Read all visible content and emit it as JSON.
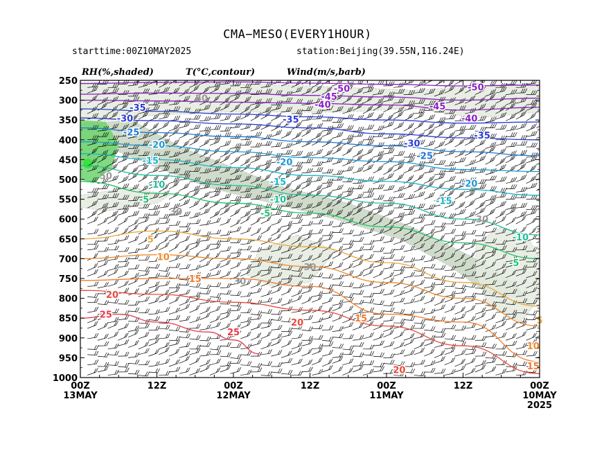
{
  "title": "CMA−MESO(EVERY1HOUR)",
  "subtitle_left": "starttime:00Z10MAY2025",
  "subtitle_right": "station:Beijing(39.55N,116.24E)",
  "legend": {
    "rh": "RH(%,shaded)",
    "temp": "T(°C,contour)",
    "wind": "Wind(m/s,barb)"
  },
  "chart_data": {
    "type": "heatmap",
    "description_kind": "time-height cross section",
    "x_axis": {
      "reversed": true,
      "hours_from_start_range": [
        0,
        72
      ],
      "ticks": [
        {
          "hour": 72,
          "line1": "00Z",
          "line2": "13MAY",
          "line3": ""
        },
        {
          "hour": 60,
          "line1": "12Z",
          "line2": "",
          "line3": ""
        },
        {
          "hour": 48,
          "line1": "00Z",
          "line2": "12MAY",
          "line3": ""
        },
        {
          "hour": 36,
          "line1": "12Z",
          "line2": "",
          "line3": ""
        },
        {
          "hour": 24,
          "line1": "00Z",
          "line2": "11MAY",
          "line3": ""
        },
        {
          "hour": 12,
          "line1": "12Z",
          "line2": "",
          "line3": ""
        },
        {
          "hour": 0,
          "line1": "00Z",
          "line2": "10MAY",
          "line3": "2025"
        }
      ]
    },
    "y_axis": {
      "unit": "hPa",
      "range": [
        1000,
        250
      ],
      "ticks": [
        250,
        300,
        350,
        400,
        450,
        500,
        550,
        600,
        650,
        700,
        750,
        800,
        850,
        900,
        950,
        1000
      ]
    },
    "temperature_contours": [
      {
        "value": -50,
        "color": "#8a1fc4",
        "label": "-50",
        "points": [
          [
            72,
            258
          ],
          [
            60,
            255
          ],
          [
            48,
            254
          ],
          [
            36,
            257
          ],
          [
            24,
            260
          ],
          [
            12,
            264
          ],
          [
            0,
            262
          ]
        ],
        "labels": [
          [
            31,
            270
          ],
          [
            10,
            267
          ]
        ]
      },
      {
        "value": -45,
        "color": "#8a1fc4",
        "label": "-45",
        "points": [
          [
            72,
            285
          ],
          [
            60,
            282
          ],
          [
            48,
            283
          ],
          [
            36,
            288
          ],
          [
            24,
            292
          ],
          [
            12,
            300
          ],
          [
            0,
            295
          ]
        ],
        "labels": [
          [
            33,
            290
          ],
          [
            16,
            315
          ]
        ]
      },
      {
        "value": -40,
        "color": "#8a1fc4",
        "label": "-40",
        "points": [
          [
            72,
            300
          ],
          [
            60,
            302
          ],
          [
            48,
            305
          ],
          [
            36,
            308
          ],
          [
            24,
            312
          ],
          [
            12,
            325
          ],
          [
            0,
            318
          ]
        ],
        "labels": [
          [
            34,
            310
          ],
          [
            11,
            345
          ]
        ]
      },
      {
        "value": -35,
        "color": "#2a3bd6",
        "label": "-35",
        "points": [
          [
            72,
            322
          ],
          [
            60,
            328
          ],
          [
            48,
            335
          ],
          [
            36,
            342
          ],
          [
            24,
            350
          ],
          [
            12,
            358
          ],
          [
            0,
            355
          ]
        ],
        "labels": [
          [
            63,
            318
          ],
          [
            39,
            348
          ],
          [
            9,
            388
          ]
        ]
      },
      {
        "value": -30,
        "color": "#2a3bd6",
        "label": "-30",
        "points": [
          [
            72,
            345
          ],
          [
            60,
            352
          ],
          [
            48,
            360
          ],
          [
            36,
            370
          ],
          [
            24,
            385
          ],
          [
            12,
            395
          ],
          [
            0,
            400
          ]
        ],
        "labels": [
          [
            65,
            345
          ],
          [
            20,
            408
          ]
        ]
      },
      {
        "value": -25,
        "color": "#1f78d6",
        "label": "-25",
        "points": [
          [
            72,
            370
          ],
          [
            60,
            382
          ],
          [
            48,
            392
          ],
          [
            36,
            405
          ],
          [
            24,
            415
          ],
          [
            12,
            430
          ],
          [
            0,
            440
          ]
        ],
        "labels": [
          [
            64,
            380
          ],
          [
            18,
            440
          ]
        ]
      },
      {
        "value": -20,
        "color": "#1f9ad6",
        "label": "-20",
        "points": [
          [
            72,
            405
          ],
          [
            60,
            415
          ],
          [
            48,
            430
          ],
          [
            36,
            445
          ],
          [
            24,
            455
          ],
          [
            12,
            475
          ],
          [
            0,
            480
          ]
        ],
        "labels": [
          [
            60,
            412
          ],
          [
            40,
            455
          ],
          [
            11,
            510
          ]
        ]
      },
      {
        "value": -15,
        "color": "#19b5c7",
        "label": "-15",
        "points": [
          [
            72,
            435
          ],
          [
            60,
            450
          ],
          [
            48,
            470
          ],
          [
            36,
            490
          ],
          [
            24,
            505
          ],
          [
            12,
            525
          ],
          [
            0,
            540
          ]
        ],
        "labels": [
          [
            61,
            452
          ],
          [
            41,
            505
          ],
          [
            15,
            553
          ]
        ]
      },
      {
        "value": -10,
        "color": "#1fbf9a",
        "label": "-10",
        "points": [
          [
            72,
            465
          ],
          [
            60,
            490
          ],
          [
            48,
            515
          ],
          [
            36,
            540
          ],
          [
            24,
            560
          ],
          [
            12,
            600
          ],
          [
            0,
            640
          ]
        ],
        "labels": [
          [
            60,
            512
          ],
          [
            41,
            550
          ],
          [
            3,
            645
          ]
        ]
      },
      {
        "value": -5,
        "color": "#1cc06a",
        "label": "-5",
        "points": [
          [
            72,
            505
          ],
          [
            60,
            535
          ],
          [
            48,
            560
          ],
          [
            36,
            585
          ],
          [
            24,
            620
          ],
          [
            12,
            660
          ],
          [
            0,
            700
          ]
        ],
        "labels": [
          [
            62,
            550
          ],
          [
            43,
            585
          ],
          [
            4,
            710
          ]
        ]
      },
      {
        "value": 5,
        "color": "#e8a63a",
        "label": "5",
        "points": [
          [
            72,
            650
          ],
          [
            60,
            630
          ],
          [
            48,
            650
          ],
          [
            36,
            670
          ],
          [
            24,
            710
          ],
          [
            12,
            760
          ],
          [
            0,
            820
          ]
        ],
        "labels": [
          [
            61,
            650
          ],
          [
            0,
            855
          ]
        ]
      },
      {
        "value": 10,
        "color": "#f08a2a",
        "label": "10",
        "points": [
          [
            72,
            700
          ],
          [
            60,
            690
          ],
          [
            48,
            700
          ],
          [
            36,
            720
          ],
          [
            24,
            760
          ],
          [
            12,
            800
          ],
          [
            0,
            870
          ]
        ],
        "labels": [
          [
            59,
            695
          ],
          [
            1,
            920
          ]
        ]
      },
      {
        "value": 15,
        "color": "#f07a2a",
        "label": "15",
        "points": [
          [
            72,
            755
          ],
          [
            60,
            750
          ],
          [
            48,
            750
          ],
          [
            36,
            770
          ],
          [
            24,
            840
          ],
          [
            12,
            860
          ],
          [
            0,
            960
          ]
        ],
        "labels": [
          [
            54,
            750
          ],
          [
            28,
            850
          ],
          [
            1,
            970
          ]
        ]
      },
      {
        "value": 20,
        "color": "#e84a3a",
        "label": "20",
        "points": [
          [
            72,
            780
          ],
          [
            60,
            790
          ],
          [
            48,
            810
          ],
          [
            36,
            830
          ],
          [
            24,
            870
          ],
          [
            12,
            920
          ],
          [
            0,
            990
          ]
        ],
        "labels": [
          [
            67,
            790
          ],
          [
            38,
            860
          ],
          [
            22,
            980
          ]
        ]
      },
      {
        "value": 25,
        "color": "#e83a4a",
        "label": "25",
        "points": [
          [
            72,
            850
          ],
          [
            66,
            840
          ],
          [
            60,
            860
          ],
          [
            52,
            885
          ],
          [
            48,
            905
          ],
          [
            44,
            940
          ]
        ],
        "labels": [
          [
            68,
            840
          ],
          [
            48,
            885
          ]
        ]
      }
    ],
    "rh_contours": [
      {
        "label": "50",
        "at": [
          53,
          295
        ]
      },
      {
        "label": "50",
        "at": [
          68,
          490
        ]
      },
      {
        "label": "30",
        "at": [
          57,
          580
        ]
      },
      {
        "label": "30",
        "at": [
          47,
          756
        ]
      },
      {
        "label": "30",
        "at": [
          36,
          720
        ]
      },
      {
        "label": "30",
        "at": [
          9,
          600
        ]
      }
    ],
    "rh_shading": {
      "light": "#e4ecdf",
      "mid": "#c8d6c3",
      "wet": "#6cd36c",
      "peak": "#39e339"
    },
    "wind": {
      "style": "barb",
      "unit": "m/s",
      "color": "#000000"
    }
  }
}
